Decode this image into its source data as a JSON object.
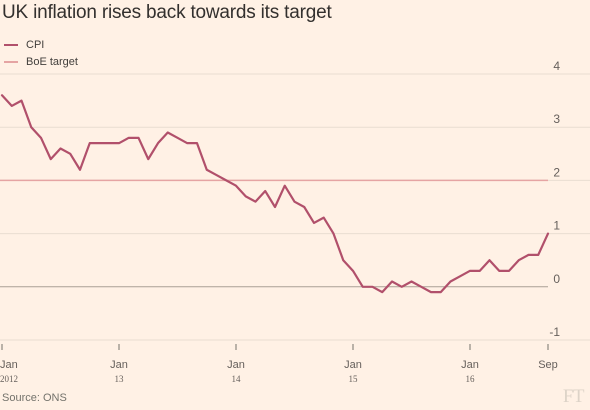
{
  "title": "UK inflation rises back towards its target",
  "source": "Source: ONS",
  "brand": "FT",
  "colors": {
    "background": "#fff1e5",
    "cpi": "#b1506b",
    "target": "#e5a4a3",
    "zero": "#aaa095",
    "grid": "#e9ddd1"
  },
  "chart_data": {
    "type": "line",
    "title": "UK inflation rises back towards its target",
    "xlabel": "",
    "ylabel": "",
    "ylim": [
      -1,
      4
    ],
    "yticks": [
      4,
      3,
      2,
      1,
      0,
      -1
    ],
    "legend_position": "top-left",
    "x_start": "2012-01",
    "x_end": "2016-09",
    "x_tick_labels": [
      {
        "month": "Jan",
        "year": "2012",
        "date": "2012-01"
      },
      {
        "month": "Jan",
        "year": "13",
        "date": "2013-01"
      },
      {
        "month": "Jan",
        "year": "14",
        "date": "2014-01"
      },
      {
        "month": "Jan",
        "year": "15",
        "date": "2015-01"
      },
      {
        "month": "Jan",
        "year": "16",
        "date": "2016-01"
      },
      {
        "month": "Sep",
        "year": "",
        "date": "2016-09"
      }
    ],
    "series": [
      {
        "name": "CPI",
        "x": [
          "2012-01",
          "2012-02",
          "2012-03",
          "2012-04",
          "2012-05",
          "2012-06",
          "2012-07",
          "2012-08",
          "2012-09",
          "2012-10",
          "2012-11",
          "2012-12",
          "2013-01",
          "2013-02",
          "2013-03",
          "2013-04",
          "2013-05",
          "2013-06",
          "2013-07",
          "2013-08",
          "2013-09",
          "2013-10",
          "2013-11",
          "2013-12",
          "2014-01",
          "2014-02",
          "2014-03",
          "2014-04",
          "2014-05",
          "2014-06",
          "2014-07",
          "2014-08",
          "2014-09",
          "2014-10",
          "2014-11",
          "2014-12",
          "2015-01",
          "2015-02",
          "2015-03",
          "2015-04",
          "2015-05",
          "2015-06",
          "2015-07",
          "2015-08",
          "2015-09",
          "2015-10",
          "2015-11",
          "2015-12",
          "2016-01",
          "2016-02",
          "2016-03",
          "2016-04",
          "2016-05",
          "2016-06",
          "2016-07",
          "2016-08",
          "2016-09"
        ],
        "values": [
          3.6,
          3.4,
          3.5,
          3.0,
          2.8,
          2.4,
          2.6,
          2.5,
          2.2,
          2.7,
          2.7,
          2.7,
          2.7,
          2.8,
          2.8,
          2.4,
          2.7,
          2.9,
          2.8,
          2.7,
          2.7,
          2.2,
          2.1,
          2.0,
          1.9,
          1.7,
          1.6,
          1.8,
          1.5,
          1.9,
          1.6,
          1.5,
          1.2,
          1.3,
          1.0,
          0.5,
          0.3,
          0.0,
          0.0,
          -0.1,
          0.1,
          0.0,
          0.1,
          0.0,
          -0.1,
          -0.1,
          0.1,
          0.2,
          0.3,
          0.3,
          0.5,
          0.3,
          0.3,
          0.5,
          0.6,
          0.6,
          1.0
        ]
      },
      {
        "name": "BoE target",
        "x": [
          "2012-01",
          "2016-09"
        ],
        "values": [
          2,
          2
        ]
      }
    ]
  }
}
